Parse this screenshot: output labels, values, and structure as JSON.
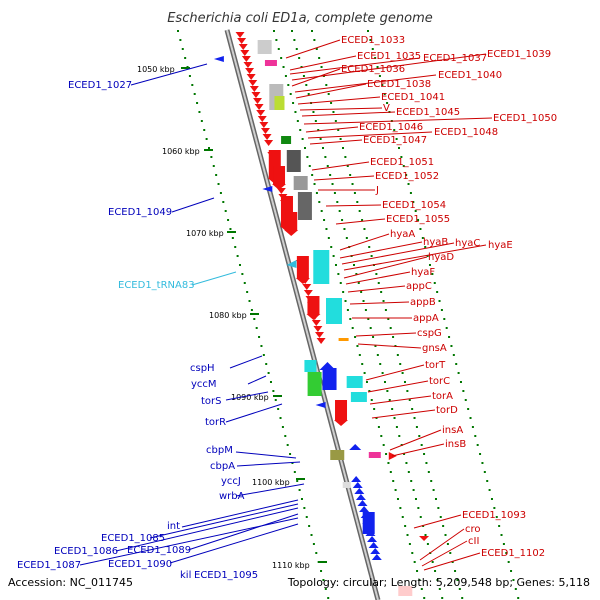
{
  "title": "Escherichia coli ED1a, complete genome",
  "accession_text": "Accession: NC_011745",
  "summary_text": "Topology: circular; Length: 5,209,548 bp; Genes: 5,118",
  "colors": {
    "forward_label": "#cc0000",
    "reverse_label": "#0000bb",
    "trna_label": "#33bbdd",
    "backbone": "#888888",
    "tick": "#007700"
  },
  "scale_ticks": [
    "1050 kbp",
    "1060 kbp",
    "1070 kbp",
    "1080 kbp",
    "1090 kbp",
    "1100 kbp",
    "1110 kbp"
  ],
  "forward_labels": [
    "ECED1_1033",
    "ECED1_1035",
    "ECED1_1037",
    "ECED1_1039",
    "ECED1_1036",
    "ECED1_1040",
    "ECED1_1038",
    "ECED1_1041",
    "V",
    "ECED1_1045",
    "ECED1_1050",
    "ECED1_1046",
    "ECED1_1048",
    "ECED1_1047",
    "ECED1_1051",
    "ECED1_1052",
    "J",
    "ECED1_1054",
    "ECED1_1055",
    "hyaA",
    "hyaB",
    "hyaC",
    "hyaE",
    "hyaD",
    "hyaF",
    "appC",
    "appB",
    "appA",
    "cspG",
    "gnsA",
    "torT",
    "torC",
    "torA",
    "torD",
    "insA",
    "insB",
    "ECED1_1093",
    "cro",
    "cII",
    "ECED1_1102"
  ],
  "reverse_labels": [
    "ECED1_1027",
    "ECED1_1049",
    "cspH",
    "yccM",
    "torS",
    "torR",
    "cbpM",
    "cbpA",
    "yccJ",
    "wrbA",
    "int",
    "ECED1_1085",
    "ECED1_1086",
    "ECED1_1089",
    "ECED1_1087",
    "ECED1_1090",
    "kil",
    "ECED1_1095"
  ],
  "trna_labels": [
    "ECED1_tRNA83"
  ]
}
